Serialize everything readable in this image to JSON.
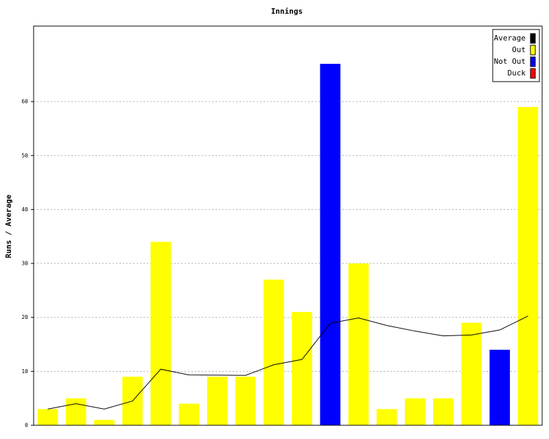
{
  "chart_data": {
    "type": "bar",
    "title": "Innings",
    "y_label": "Runs / Average",
    "ylim": [
      0,
      74
    ],
    "yticks": [
      0,
      10,
      20,
      30,
      40,
      50,
      60
    ],
    "grid": true,
    "legend": "top-right",
    "series": [
      {
        "name": "Average",
        "color": "#000000",
        "type": "line",
        "values": [
          3,
          4,
          3,
          4.5,
          10.4,
          9.33,
          9.29,
          9.25,
          11.22,
          12.2,
          18.9,
          19.9,
          18.5,
          17.46,
          16.57,
          16.73,
          17.67,
          20.25
        ]
      },
      {
        "name": "Out",
        "color": "#ffff00",
        "type": "bar",
        "values": [
          3,
          5,
          1,
          9,
          34,
          4,
          9,
          9,
          27,
          21,
          null,
          30,
          3,
          5,
          5,
          19,
          null,
          59
        ]
      },
      {
        "name": "Not Out",
        "color": "#0000ff",
        "type": "bar",
        "values": [
          null,
          null,
          null,
          null,
          null,
          null,
          null,
          null,
          null,
          null,
          67,
          null,
          null,
          null,
          null,
          null,
          14,
          null
        ]
      },
      {
        "name": "Duck",
        "color": "#ff0000",
        "type": "bar",
        "values": [
          null,
          null,
          null,
          null,
          null,
          null,
          null,
          null,
          null,
          null,
          null,
          null,
          null,
          null,
          null,
          null,
          null,
          null
        ]
      }
    ]
  }
}
